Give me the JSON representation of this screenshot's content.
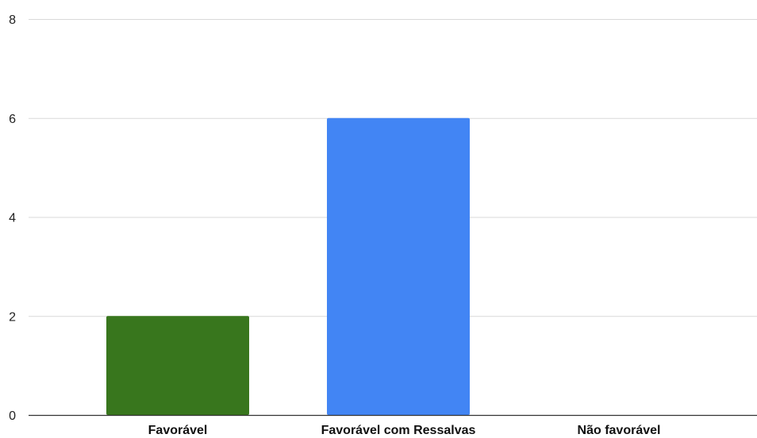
{
  "chart_data": {
    "type": "bar",
    "categories": [
      "Favorável",
      "Favorável com Ressalvas",
      "Não favorável"
    ],
    "values": [
      2,
      6,
      0
    ],
    "bar_colors": [
      "#38761d",
      "#4285f4",
      "#4285f4"
    ],
    "title": "",
    "xlabel": "",
    "ylabel": "",
    "ylim": [
      0,
      8
    ],
    "yticks": [
      0,
      2,
      4,
      6,
      8
    ],
    "grid": true,
    "legend": "none"
  }
}
